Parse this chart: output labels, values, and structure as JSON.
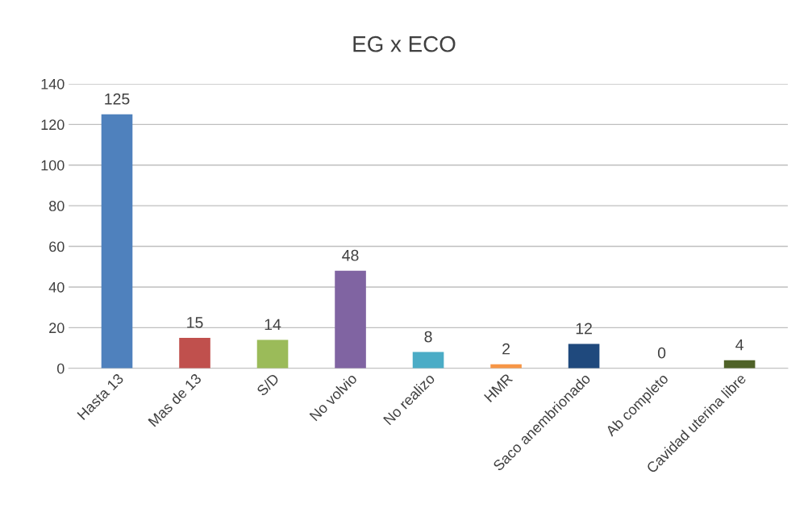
{
  "chart_data": {
    "type": "bar",
    "title": "EG x ECO",
    "categories": [
      "Hasta 13",
      "Mas de 13",
      "S/D",
      "No volvio",
      "No realizo",
      "HMR",
      "Saco anembrionado",
      "Ab completo",
      "Cavidad uterina libre"
    ],
    "values": [
      125,
      15,
      14,
      48,
      8,
      2,
      12,
      0,
      4
    ],
    "colors": [
      "#4f81bd",
      "#c0504d",
      "#9bbb59",
      "#8064a2",
      "#4bacc6",
      "#f79646",
      "#1f497d",
      "#2c4d75",
      "#4f6228"
    ],
    "ylim": [
      0,
      140
    ],
    "yticks": [
      0,
      20,
      40,
      60,
      80,
      100,
      120,
      140
    ],
    "grid": "y",
    "data_labels": true,
    "legend": false
  }
}
